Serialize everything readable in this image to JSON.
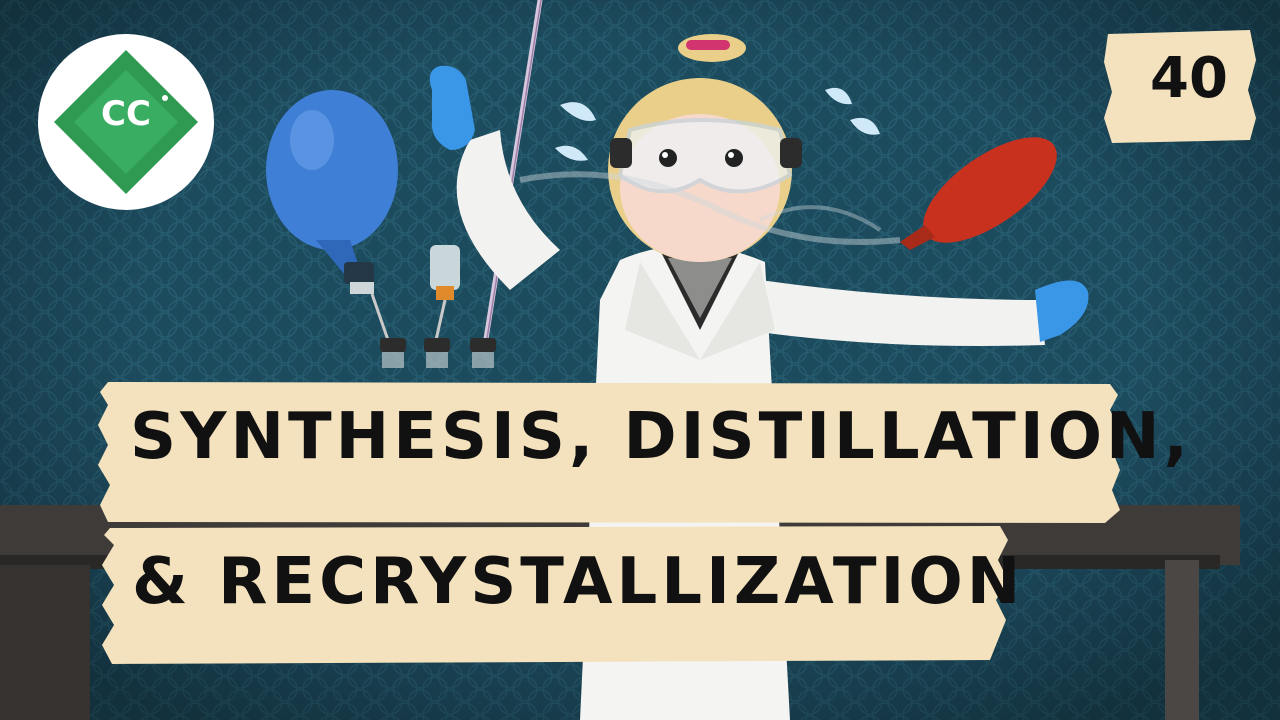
{
  "title": {
    "line1": "SYNTHESIS, DISTILLATION,",
    "line2": "& RECRYSTALLIZATION"
  },
  "episode": "40",
  "logo": {
    "text": "CC",
    "icon": "crash-course-logo-icon"
  },
  "colors": {
    "background": "#1d4b5e",
    "tape": "#f3e2bd",
    "logo_green": "#2e9a52",
    "balloon_blue": "#3f7fd6",
    "balloon_red": "#c9311f",
    "glove_blue": "#3a96e6",
    "table": "#3e3b39"
  }
}
